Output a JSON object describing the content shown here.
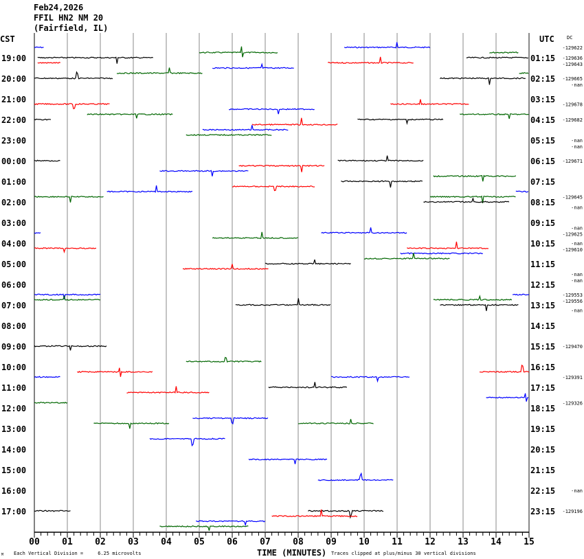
{
  "header": {
    "date": "Feb24,2026",
    "station": "FFIL HN2 NM 20",
    "location": "(Fairfield, IL)"
  },
  "chart_data": {
    "type": "line",
    "subtype": "helicorder",
    "left_axis_title": "CST",
    "right_axis_title": "UTC",
    "dc_title": "DC",
    "xlabel": "TIME (MINUTES)",
    "x_ticks": [
      "00",
      "01",
      "02",
      "03",
      "04",
      "05",
      "06",
      "07",
      "08",
      "09",
      "10",
      "11",
      "12",
      "13",
      "14",
      "15"
    ],
    "xlim": [
      0,
      15
    ],
    "line_interval_minutes": 15,
    "first_line": "18:30",
    "line_count": 94,
    "cst_labels": [
      "19:00",
      "20:00",
      "21:00",
      "22:00",
      "23:00",
      "00:00",
      "01:00",
      "02:00",
      "03:00",
      "04:00",
      "05:00",
      "06:00",
      "07:00",
      "08:00",
      "09:00",
      "10:00",
      "11:00",
      "12:00",
      "13:00",
      "14:00",
      "15:00",
      "16:00",
      "17:00"
    ],
    "utc_labels": [
      "01:15",
      "02:15",
      "03:15",
      "04:15",
      "05:15",
      "06:15",
      "07:15",
      "08:15",
      "09:15",
      "10:15",
      "11:15",
      "12:15",
      "13:15",
      "14:15",
      "15:15",
      "16:15",
      "17:15",
      "18:15",
      "19:15",
      "20:15",
      "21:15",
      "22:15",
      "23:15"
    ],
    "trace_colors": [
      "#0000ff",
      "#006600",
      "#000000",
      "#ff0000"
    ],
    "segments": [
      [
        0,
        0,
        0.3
      ],
      [
        0,
        9.4,
        12,
        11
      ],
      [
        1,
        5,
        7.4,
        6.3
      ],
      [
        1,
        13.8,
        14.7,
        14.7
      ],
      [
        2,
        0.1,
        3.6,
        2.5
      ],
      [
        2,
        13.1,
        15
      ],
      [
        3,
        0.1,
        0.8
      ],
      [
        3,
        8.9,
        11.5,
        10.5
      ],
      [
        4,
        5.4,
        7.9,
        6.9
      ],
      [
        5,
        2.5,
        5.1,
        4.1
      ],
      [
        5,
        14.7,
        15
      ],
      [
        6,
        0,
        2.4,
        1.3
      ],
      [
        6,
        12.3,
        14.9,
        13.8
      ],
      [
        11,
        0,
        2.3,
        1.2
      ],
      [
        11,
        10.8,
        13.2,
        11.7
      ],
      [
        12,
        5.9,
        8.5,
        7.4
      ],
      [
        13,
        1.6,
        4.2,
        3.1
      ],
      [
        13,
        12.9,
        15,
        14.4
      ],
      [
        14,
        0,
        0.5
      ],
      [
        14,
        9.8,
        12.4,
        11.3
      ],
      [
        15,
        6.6,
        9.2,
        8.1
      ],
      [
        16,
        5.1,
        7.7,
        6.6
      ],
      [
        17,
        4.6,
        7.2
      ],
      [
        22,
        0,
        0.8
      ],
      [
        22,
        9.2,
        11.8,
        10.7
      ],
      [
        23,
        6.2,
        8.8,
        8.1
      ],
      [
        24,
        3.8,
        6.5,
        5.4
      ],
      [
        25,
        12.1,
        14.6,
        13.6
      ],
      [
        26,
        9.3,
        11.8,
        10.8
      ],
      [
        27,
        6,
        8.5,
        7.3
      ],
      [
        28,
        2.2,
        4.8,
        3.7
      ],
      [
        28,
        14.6,
        15
      ],
      [
        29,
        0,
        2.1,
        1.1
      ],
      [
        29,
        12,
        14.6,
        13.6
      ],
      [
        30,
        11.8,
        14.4,
        13.3
      ],
      [
        36,
        0,
        0.2
      ],
      [
        36,
        8.7,
        11.3,
        10.2
      ],
      [
        37,
        5.4,
        8,
        6.9
      ],
      [
        39,
        0,
        1.9,
        0.9
      ],
      [
        39,
        11.3,
        13.8,
        12.8
      ],
      [
        40,
        11.1,
        13.6
      ],
      [
        41,
        10,
        12.6,
        11.5
      ],
      [
        42,
        7,
        9.6,
        8.5
      ],
      [
        43,
        4.5,
        7.1,
        6
      ],
      [
        48,
        0,
        2,
        0.9
      ],
      [
        48,
        14.5,
        15
      ],
      [
        49,
        0,
        2,
        0.9
      ],
      [
        49,
        12.1,
        14.5,
        13.5
      ],
      [
        50,
        6.1,
        9,
        8
      ],
      [
        50,
        12.3,
        14.7,
        13.7
      ],
      [
        58,
        0,
        2.2,
        1.1
      ],
      [
        61,
        4.6,
        6.9,
        5.8
      ],
      [
        63,
        1.3,
        3.6,
        2.6
      ],
      [
        63,
        13.5,
        15,
        14.8
      ],
      [
        64,
        0,
        0.8
      ],
      [
        64,
        9,
        11.4,
        10.4
      ],
      [
        66,
        7.1,
        9.5,
        8.5
      ],
      [
        67,
        2.8,
        5.3,
        4.3
      ],
      [
        68,
        13.7,
        15,
        14.9
      ],
      [
        69,
        0,
        1
      ],
      [
        72,
        4.8,
        7.1,
        6
      ],
      [
        73,
        1.8,
        4.1,
        2.9
      ],
      [
        73,
        8,
        10.3,
        9.6
      ],
      [
        76,
        3.5,
        5.8,
        4.8
      ],
      [
        80,
        6.5,
        8.9,
        7.9
      ],
      [
        84,
        8.6,
        10.9,
        9.9
      ],
      [
        90,
        0,
        1.1
      ],
      [
        90,
        8.3,
        10.6,
        9.6
      ],
      [
        91,
        7.2,
        9.8,
        8.7
      ],
      [
        92,
        4.9,
        7,
        6.4
      ],
      [
        93,
        3.8,
        6.5,
        5.3
      ]
    ],
    "dc_values": [
      [
        0,
        "-129622"
      ],
      [
        2,
        "-129636"
      ],
      [
        3,
        "-129643"
      ],
      [
        6,
        "-129665"
      ],
      [
        7,
        "-nan"
      ],
      [
        11,
        "-129678"
      ],
      [
        14,
        "-129682"
      ],
      [
        18,
        "-nan"
      ],
      [
        19,
        "-nan"
      ],
      [
        22,
        "-129671"
      ],
      [
        29,
        "-129645"
      ],
      [
        31,
        "-nan"
      ],
      [
        35,
        "-nan"
      ],
      [
        36,
        "-129625"
      ],
      [
        38,
        "-nan"
      ],
      [
        39,
        "-129610"
      ],
      [
        44,
        "-nan"
      ],
      [
        45,
        "-nan"
      ],
      [
        48,
        "-129553"
      ],
      [
        49,
        "-129556"
      ],
      [
        51,
        "-nan"
      ],
      [
        58,
        "-129470"
      ],
      [
        64,
        "-129391"
      ],
      [
        69,
        "-129326"
      ],
      [
        86,
        "-nan"
      ],
      [
        90,
        "-129196"
      ]
    ],
    "scale_note": "Each Vertical Division =     6.25 microvolts",
    "clip_note": "Traces clipped at plus/minus 30 vertical divisions"
  }
}
